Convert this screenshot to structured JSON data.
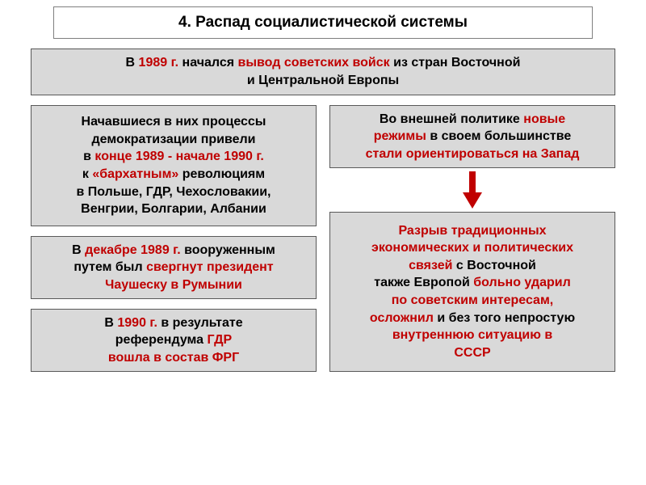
{
  "title": "4. Распад социалистической системы",
  "top": {
    "t1": "В ",
    "y1": "1989 г.",
    "t2": " начался ",
    "r1": "вывод советских войск",
    "t3": " из стран Восточной",
    "t4": "и Центральной Европы"
  },
  "left1": {
    "l1a": "Начавшиеся в них процессы",
    "l2a": "демократизации привели",
    "l3a": "в ",
    "l3b": "конце 1989 - начале 1990 г.",
    "l4a": "к ",
    "l4b": "«бархатным»",
    "l4c": " революциям",
    "l5a": "в Польше, ГДР, Чехословакии,",
    "l6a": "Венгрии, Болгарии, Албании"
  },
  "left2": {
    "l1a": "В ",
    "l1b": "декабре 1989 г.",
    "l1c": " вооруженным",
    "l2a": "путем был ",
    "l2b": "свергнут  президент",
    "l3a": "Чаушеску в Румынии"
  },
  "left3": {
    "l1a": "В ",
    "l1b": "1990 г.",
    "l1c": " в результате",
    "l2a": "референдума ",
    "l2b": "ГДР",
    "l3a": "вошла в состав ФРГ"
  },
  "right1": {
    "l1a": "Во внешней политике ",
    "l1b": "новые",
    "l2a": "режимы",
    "l2b": " в своем большинстве",
    "l3a": "стали ориентироваться на Запад"
  },
  "right2": {
    "l1a": "Разрыв традиционных",
    "l2a": "экономических и политических",
    "l3a": "связей",
    "l3b": " с Восточной",
    "l4a": "также Европой ",
    "l4b": "больно ударил",
    "l5a": "по советским интересам,",
    "l6a": "осложнил",
    "l6b": " и без того непростую",
    "l7a": "внутреннюю ситуацию в",
    "l8a": "СССР"
  },
  "colors": {
    "red": "#c00000",
    "boxbg": "#d9d9d9",
    "border": "#595959"
  }
}
